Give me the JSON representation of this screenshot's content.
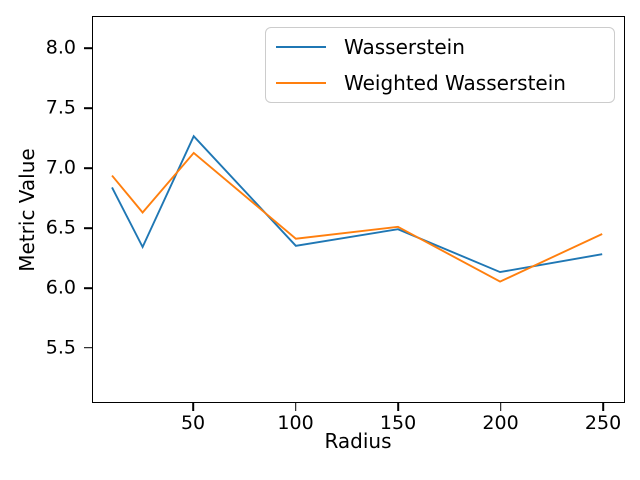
{
  "chart_data": {
    "type": "line",
    "title": "",
    "xlabel": "Radius",
    "ylabel": "Metric Value",
    "x": [
      10,
      25,
      50,
      100,
      150,
      200,
      250
    ],
    "series": [
      {
        "name": "Wasserstein",
        "color": "#1f77b4",
        "values": [
          6.84,
          6.34,
          7.27,
          6.35,
          6.49,
          6.13,
          6.28
        ]
      },
      {
        "name": "Weighted Wasserstein",
        "color": "#ff7f0e",
        "values": [
          6.94,
          6.63,
          7.13,
          6.41,
          6.51,
          6.05,
          6.45
        ]
      }
    ],
    "xlim": [
      0.7,
      260.7
    ],
    "ylim": [
      5.04,
      8.27
    ],
    "xticks": {
      "values": [
        50,
        100,
        150,
        200,
        250
      ],
      "labels": [
        "50",
        "100",
        "150",
        "200",
        "250"
      ]
    },
    "yticks": {
      "values": [
        8.0,
        7.5,
        7.0,
        6.5,
        6.0,
        5.5
      ],
      "labels": [
        "8.0",
        "7.5",
        "7.0",
        "6.5",
        "6.0",
        "5.5"
      ]
    },
    "grid": false,
    "legend_position": "upper right",
    "axis_color": "#000000",
    "background_color": "#ffffff"
  }
}
